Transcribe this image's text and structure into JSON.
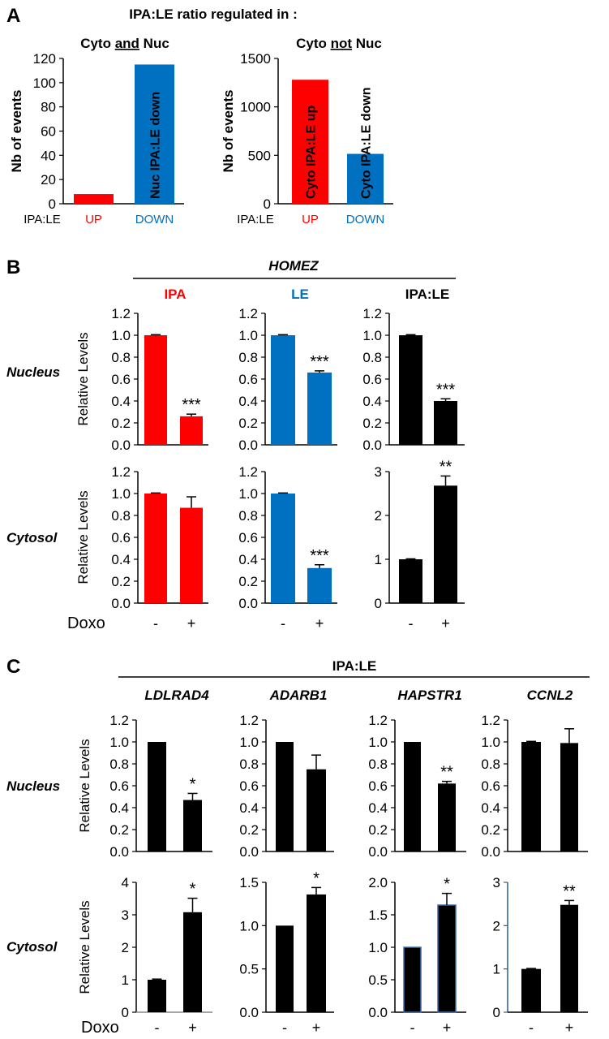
{
  "colors": {
    "red": "#ff0000",
    "blue": "#0070c0",
    "black": "#000000"
  },
  "panels": {
    "A": {
      "letter": "A",
      "title": "IPA:LE ratio regulated in :",
      "x_prefix": "IPA:LE",
      "subtitles": [
        {
          "pre": "Cyto ",
          "underlined": "and",
          "post": " Nuc"
        },
        {
          "pre": "Cyto ",
          "underlined": "not",
          "post": " Nuc"
        }
      ]
    },
    "B": {
      "letter": "B",
      "gene": "HOMEZ",
      "columns": [
        "IPA",
        "LE",
        "IPA:LE"
      ],
      "rows": [
        "Nucleus",
        "Cytosol"
      ],
      "xlabel": "Doxo"
    },
    "C": {
      "letter": "C",
      "group": "IPA:LE",
      "genes": [
        "LDLRAD4",
        "ADARB1",
        "HAPSTR1",
        "CCNL2"
      ],
      "rows": [
        "Nucleus",
        "Cytosol"
      ],
      "xlabel": "Doxo"
    }
  },
  "chart_data": [
    {
      "panel": "A",
      "type": "bar",
      "ylabel": "Nb of events",
      "categories": [
        "UP",
        "DOWN"
      ],
      "category_colors": [
        "#ff0000",
        "#0070c0"
      ],
      "values": [
        8,
        115
      ],
      "errors": [
        0,
        0
      ],
      "significance": "",
      "bar_colors": [
        "#ff0000",
        "#0070c0"
      ],
      "bar_labels": [
        "",
        "Nuc IPA:LE down"
      ],
      "ylim": [
        0,
        120
      ],
      "yticks": [
        0,
        20,
        40,
        60,
        80,
        100,
        120
      ],
      "ytick_labels": [
        "0",
        "20",
        "40",
        "60",
        "80",
        "100",
        "120"
      ]
    },
    {
      "panel": "A",
      "type": "bar",
      "ylabel": "Nb of events",
      "categories": [
        "UP",
        "DOWN"
      ],
      "category_colors": [
        "#ff0000",
        "#0070c0"
      ],
      "values": [
        1280,
        515
      ],
      "errors": [
        0,
        0
      ],
      "significance": "",
      "bar_colors": [
        "#ff0000",
        "#0070c0"
      ],
      "bar_labels": [
        "Cyto IPA:LE up",
        "Cyto IPA:LE down"
      ],
      "ylim": [
        0,
        1500
      ],
      "yticks": [
        0,
        500,
        1000,
        1500
      ],
      "ytick_labels": [
        "0",
        "500",
        "1000",
        "1500"
      ]
    },
    {
      "panel": "B",
      "row": "Nucleus",
      "column": "IPA",
      "type": "bar",
      "ylabel": "Relative Levels",
      "categories": [
        "-",
        "+"
      ],
      "values": [
        1.0,
        0.26
      ],
      "errors": [
        0.005,
        0.02
      ],
      "significance": "***",
      "bar_colors": [
        "#ff0000",
        "#ff0000"
      ],
      "ylim": [
        0,
        1.2
      ],
      "yticks": [
        0,
        0.2,
        0.4,
        0.6,
        0.8,
        1.0,
        1.2
      ],
      "ytick_labels": [
        "0.0",
        "0.2",
        "0.4",
        "0.6",
        "0.8",
        "1.0",
        "1.2"
      ]
    },
    {
      "panel": "B",
      "row": "Nucleus",
      "column": "LE",
      "type": "bar",
      "ylabel": "",
      "categories": [
        "-",
        "+"
      ],
      "values": [
        1.0,
        0.66
      ],
      "errors": [
        0.005,
        0.015
      ],
      "significance": "***",
      "bar_colors": [
        "#0070c0",
        "#0070c0"
      ],
      "ylim": [
        0,
        1.2
      ],
      "yticks": [
        0,
        0.2,
        0.4,
        0.6,
        0.8,
        1.0,
        1.2
      ],
      "ytick_labels": [
        "0.0",
        "0.2",
        "0.4",
        "0.6",
        "0.8",
        "1.0",
        "1.2"
      ]
    },
    {
      "panel": "B",
      "row": "Nucleus",
      "column": "IPA:LE",
      "type": "bar",
      "ylabel": "",
      "categories": [
        "-",
        "+"
      ],
      "values": [
        1.0,
        0.4
      ],
      "errors": [
        0.005,
        0.02
      ],
      "significance": "***",
      "bar_colors": [
        "#000000",
        "#000000"
      ],
      "ylim": [
        0,
        1.2
      ],
      "yticks": [
        0,
        0.2,
        0.4,
        0.6,
        0.8,
        1.0,
        1.2
      ],
      "ytick_labels": [
        "0.0",
        "0.2",
        "0.4",
        "0.6",
        "0.8",
        "1.0",
        "1.2"
      ]
    },
    {
      "panel": "B",
      "row": "Cytosol",
      "column": "IPA",
      "type": "bar",
      "ylabel": "Relative Levels",
      "categories": [
        "-",
        "+"
      ],
      "values": [
        1.0,
        0.87
      ],
      "errors": [
        0.005,
        0.1
      ],
      "significance": "",
      "bar_colors": [
        "#ff0000",
        "#ff0000"
      ],
      "ylim": [
        0,
        1.2
      ],
      "yticks": [
        0,
        0.2,
        0.4,
        0.6,
        0.8,
        1.0,
        1.2
      ],
      "ytick_labels": [
        "0.0",
        "0.2",
        "0.4",
        "0.6",
        "0.8",
        "1.0",
        "1.2"
      ]
    },
    {
      "panel": "B",
      "row": "Cytosol",
      "column": "LE",
      "type": "bar",
      "ylabel": "",
      "categories": [
        "-",
        "+"
      ],
      "values": [
        1.0,
        0.32
      ],
      "errors": [
        0.005,
        0.03
      ],
      "significance": "***",
      "bar_colors": [
        "#0070c0",
        "#0070c0"
      ],
      "ylim": [
        0,
        1.2
      ],
      "yticks": [
        0,
        0.2,
        0.4,
        0.6,
        0.8,
        1.0,
        1.2
      ],
      "ytick_labels": [
        "0.0",
        "0.2",
        "0.4",
        "0.6",
        "0.8",
        "1.0",
        "1.2"
      ]
    },
    {
      "panel": "B",
      "row": "Cytosol",
      "column": "IPA:LE",
      "type": "bar",
      "ylabel": "",
      "categories": [
        "-",
        "+"
      ],
      "values": [
        1.0,
        2.68
      ],
      "errors": [
        0.01,
        0.22
      ],
      "significance": "**",
      "bar_colors": [
        "#000000",
        "#000000"
      ],
      "ylim": [
        0,
        3
      ],
      "yticks": [
        0,
        1,
        2,
        3
      ],
      "ytick_labels": [
        "0",
        "1",
        "2",
        "3"
      ]
    },
    {
      "panel": "C",
      "row": "Nucleus",
      "column": "LDLRAD4",
      "type": "bar",
      "ylabel": "Relative Levels",
      "categories": [
        "-",
        "+"
      ],
      "values": [
        1.0,
        0.47
      ],
      "errors": [
        0,
        0.06
      ],
      "significance": "*",
      "bar_colors": [
        "#000000",
        "#000000"
      ],
      "ylim": [
        0,
        1.2
      ],
      "yticks": [
        0,
        0.2,
        0.4,
        0.6,
        0.8,
        1.0,
        1.2
      ],
      "ytick_labels": [
        "0.0",
        "0.2",
        "0.4",
        "0.6",
        "0.8",
        "1.0",
        "1.2"
      ]
    },
    {
      "panel": "C",
      "row": "Nucleus",
      "column": "ADARB1",
      "type": "bar",
      "ylabel": "",
      "categories": [
        "-",
        "+"
      ],
      "values": [
        1.0,
        0.75
      ],
      "errors": [
        0,
        0.13
      ],
      "significance": "",
      "bar_colors": [
        "#000000",
        "#000000"
      ],
      "ylim": [
        0,
        1.2
      ],
      "yticks": [
        0,
        0.2,
        0.4,
        0.6,
        0.8,
        1.0,
        1.2
      ],
      "ytick_labels": [
        "0.0",
        "0.2",
        "0.4",
        "0.6",
        "0.8",
        "1.0",
        "1.2"
      ]
    },
    {
      "panel": "C",
      "row": "Nucleus",
      "column": "HAPSTR1",
      "type": "bar",
      "ylabel": "",
      "categories": [
        "-",
        "+"
      ],
      "values": [
        1.0,
        0.62
      ],
      "errors": [
        0,
        0.02
      ],
      "significance": "**",
      "bar_colors": [
        "#000000",
        "#000000"
      ],
      "ylim": [
        0,
        1.2
      ],
      "yticks": [
        0,
        0.2,
        0.4,
        0.6,
        0.8,
        1.0,
        1.2
      ],
      "ytick_labels": [
        "0.0",
        "0.2",
        "0.4",
        "0.6",
        "0.8",
        "1.0",
        "1.2"
      ]
    },
    {
      "panel": "C",
      "row": "Nucleus",
      "column": "CCNL2",
      "type": "bar",
      "ylabel": "",
      "categories": [
        "-",
        "+"
      ],
      "values": [
        1.0,
        0.99
      ],
      "errors": [
        0.005,
        0.13
      ],
      "significance": "",
      "bar_colors": [
        "#000000",
        "#000000"
      ],
      "ylim": [
        0,
        1.2
      ],
      "yticks": [
        0,
        0.2,
        0.4,
        0.6,
        0.8,
        1.0,
        1.2
      ],
      "ytick_labels": [
        "0.0",
        "0.2",
        "0.4",
        "0.6",
        "0.8",
        "1.0",
        "1.2"
      ]
    },
    {
      "panel": "C",
      "row": "Cytosol",
      "column": "LDLRAD4",
      "type": "bar",
      "ylabel": "Relative Levels",
      "categories": [
        "-",
        "+"
      ],
      "values": [
        1.0,
        3.08
      ],
      "errors": [
        0.02,
        0.43
      ],
      "significance": "*",
      "bar_colors": [
        "#000000",
        "#000000"
      ],
      "ylim": [
        0,
        4
      ],
      "yticks": [
        0,
        1,
        2,
        3,
        4
      ],
      "ytick_labels": [
        "0",
        "1",
        "2",
        "3",
        "4"
      ]
    },
    {
      "panel": "C",
      "row": "Cytosol",
      "column": "ADARB1",
      "type": "bar",
      "ylabel": "",
      "categories": [
        "-",
        "+"
      ],
      "values": [
        1.0,
        1.36
      ],
      "errors": [
        0,
        0.08
      ],
      "significance": "*",
      "bar_colors": [
        "#000000",
        "#000000"
      ],
      "ylim": [
        0,
        1.5
      ],
      "yticks": [
        0,
        0.5,
        1.0,
        1.5
      ],
      "ytick_labels": [
        "0.0",
        "0.5",
        "1.0",
        "1.5"
      ]
    },
    {
      "panel": "C",
      "row": "Cytosol",
      "column": "HAPSTR1",
      "type": "bar",
      "ylabel": "",
      "categories": [
        "-",
        "+"
      ],
      "values": [
        1.0,
        1.65
      ],
      "errors": [
        0,
        0.18
      ],
      "significance": "*",
      "bar_colors": [
        "#000000",
        "#000000"
      ],
      "ylim": [
        0,
        2.0
      ],
      "yticks": [
        0,
        0.5,
        1.0,
        1.5,
        2.0
      ],
      "ytick_labels": [
        "0.0",
        "0.5",
        "1.0",
        "1.5",
        "2.0"
      ]
    },
    {
      "panel": "C",
      "row": "Cytosol",
      "column": "CCNL2",
      "type": "bar",
      "ylabel": "",
      "categories": [
        "-",
        "+"
      ],
      "values": [
        1.0,
        2.48
      ],
      "errors": [
        0.01,
        0.1
      ],
      "significance": "**",
      "bar_colors": [
        "#000000",
        "#000000"
      ],
      "ylim": [
        0,
        3
      ],
      "yticks": [
        0,
        1,
        2,
        3
      ],
      "ytick_labels": [
        "0",
        "1",
        "2",
        "3"
      ]
    }
  ]
}
